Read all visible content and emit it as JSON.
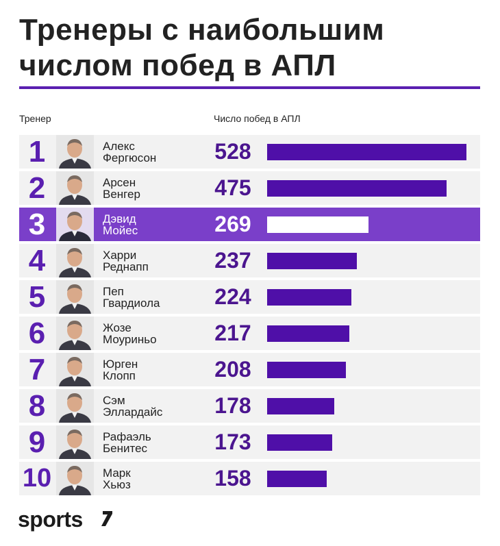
{
  "title": {
    "line1": "Тренеры с наибольшим",
    "line2": "числом побед в АПЛ"
  },
  "column_headers": {
    "coach": "Тренер",
    "wins": "Число побед в АПЛ"
  },
  "brand": {
    "logo_text": "sports"
  },
  "colors": {
    "accent": "#5a1fb0",
    "bar": "#4f0fa8",
    "highlight_row": "#7a3fc9",
    "row_bg": "#f2f2f2"
  },
  "chart_data": {
    "type": "bar",
    "orientation": "horizontal",
    "xlabel": "Число побед в АПЛ",
    "ylabel": "Тренер",
    "xlim": [
      0,
      528
    ],
    "highlighted_rank": 3,
    "rows": [
      {
        "rank": "1",
        "name_first": "Алекс",
        "name_last": "Фергюсон",
        "value": 528
      },
      {
        "rank": "2",
        "name_first": "Арсен",
        "name_last": "Венгер",
        "value": 475
      },
      {
        "rank": "3",
        "name_first": "Дэвид",
        "name_last": "Мойес",
        "value": 269
      },
      {
        "rank": "4",
        "name_first": "Харри",
        "name_last": "Реднапп",
        "value": 237
      },
      {
        "rank": "5",
        "name_first": "Пеп",
        "name_last": "Гвардиола",
        "value": 224
      },
      {
        "rank": "6",
        "name_first": "Жозе",
        "name_last": "Моуриньо",
        "value": 217
      },
      {
        "rank": "7",
        "name_first": "Юрген",
        "name_last": "Клопп",
        "value": 208
      },
      {
        "rank": "8",
        "name_first": "Сэм",
        "name_last": "Эллардайс",
        "value": 178
      },
      {
        "rank": "9",
        "name_first": "Рафаэль",
        "name_last": "Бенитес",
        "value": 173
      },
      {
        "rank": "10",
        "name_first": "Марк",
        "name_last": "Хьюз",
        "value": 158
      }
    ]
  }
}
